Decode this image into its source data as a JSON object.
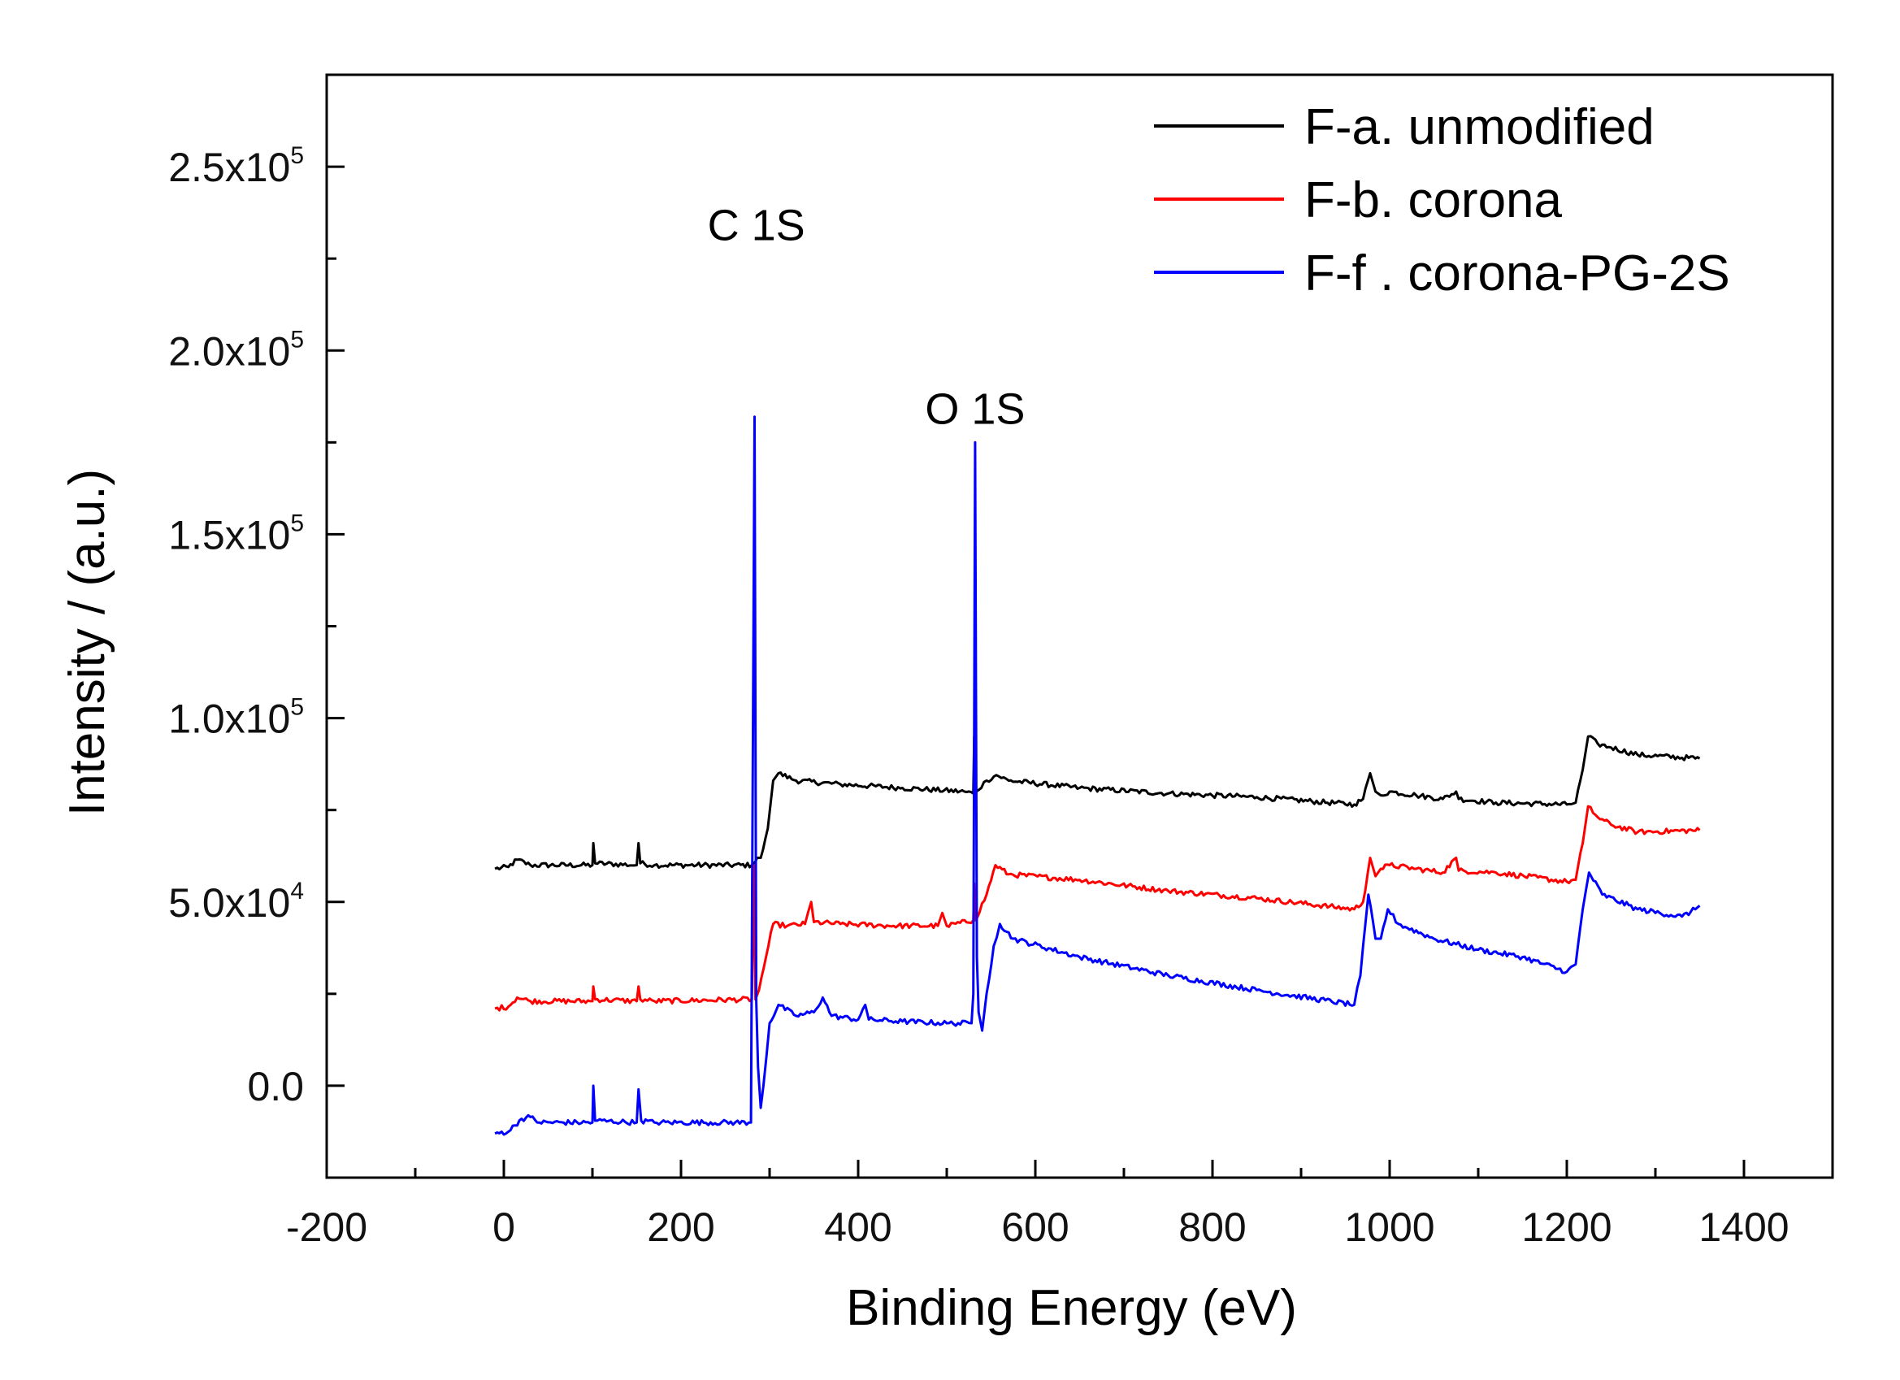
{
  "chart_data": {
    "type": "line",
    "title": "",
    "xlabel": "Binding Energy (eV)",
    "ylabel": "Intensity / (a.u.)",
    "xlim": [
      -200,
      1500
    ],
    "ylim": [
      -25000,
      275000
    ],
    "x_ticks": [
      -200,
      0,
      200,
      400,
      600,
      800,
      1000,
      1200,
      1400
    ],
    "x_tick_labels": [
      "-200",
      "0",
      "200",
      "400",
      "600",
      "800",
      "1000",
      "1200",
      "1400"
    ],
    "y_ticks": [
      0,
      50000,
      100000,
      150000,
      200000,
      250000
    ],
    "y_tick_mantissa": [
      "0.0",
      "5.0x10",
      "1.0x10",
      "1.5x10",
      "2.0x10",
      "2.5x10"
    ],
    "y_tick_exponent": [
      "",
      "4",
      "5",
      "5",
      "5",
      "5"
    ],
    "grid": false,
    "legend_position": "top-right",
    "annotations": [
      {
        "text": "C 1S",
        "x": 285,
        "y": 230000
      },
      {
        "text": "O 1S",
        "x": 532,
        "y": 180000
      }
    ],
    "series": [
      {
        "name": "F-a. unmodified",
        "color": "#000000",
        "points": [
          [
            -10,
            59000
          ],
          [
            5,
            59500
          ],
          [
            15,
            61500
          ],
          [
            30,
            60000
          ],
          [
            100,
            60000
          ],
          [
            101,
            66000
          ],
          [
            103,
            60500
          ],
          [
            150,
            60000
          ],
          [
            152,
            66000
          ],
          [
            154,
            60500
          ],
          [
            170,
            60000
          ],
          [
            280,
            60000
          ],
          [
            284,
            61000
          ],
          [
            286,
            62000
          ],
          [
            290,
            62000
          ],
          [
            298,
            70000
          ],
          [
            304,
            83000
          ],
          [
            310,
            85000
          ],
          [
            330,
            83000
          ],
          [
            380,
            82000
          ],
          [
            450,
            81000
          ],
          [
            520,
            80000
          ],
          [
            530,
            79500
          ],
          [
            531,
            95000
          ],
          [
            533,
            80000
          ],
          [
            545,
            83000
          ],
          [
            556,
            84500
          ],
          [
            570,
            83000
          ],
          [
            650,
            81000
          ],
          [
            750,
            79500
          ],
          [
            850,
            78500
          ],
          [
            960,
            76500
          ],
          [
            970,
            78000
          ],
          [
            978,
            85000
          ],
          [
            984,
            80000
          ],
          [
            990,
            79000
          ],
          [
            1000,
            80000
          ],
          [
            1030,
            79000
          ],
          [
            1060,
            78000
          ],
          [
            1075,
            80000
          ],
          [
            1078,
            78000
          ],
          [
            1120,
            77000
          ],
          [
            1200,
            76500
          ],
          [
            1210,
            77000
          ],
          [
            1218,
            86000
          ],
          [
            1224,
            95000
          ],
          [
            1235,
            93000
          ],
          [
            1250,
            92000
          ],
          [
            1280,
            90000
          ],
          [
            1350,
            89000
          ]
        ]
      },
      {
        "name": "F-b. corona",
        "color": "#ff0000",
        "points": [
          [
            -10,
            21000
          ],
          [
            5,
            21500
          ],
          [
            15,
            24000
          ],
          [
            30,
            23000
          ],
          [
            100,
            23000
          ],
          [
            101,
            27000
          ],
          [
            103,
            23500
          ],
          [
            150,
            23000
          ],
          [
            152,
            27000
          ],
          [
            154,
            23500
          ],
          [
            170,
            23000
          ],
          [
            280,
            23500
          ],
          [
            283,
            60000
          ],
          [
            284,
            23500
          ],
          [
            288,
            26000
          ],
          [
            296,
            35000
          ],
          [
            304,
            44000
          ],
          [
            320,
            43500
          ],
          [
            340,
            44000
          ],
          [
            347,
            50000
          ],
          [
            350,
            44500
          ],
          [
            380,
            44000
          ],
          [
            440,
            43500
          ],
          [
            490,
            43500
          ],
          [
            495,
            47000
          ],
          [
            500,
            43500
          ],
          [
            530,
            45000
          ],
          [
            531,
            55000
          ],
          [
            532,
            45000
          ],
          [
            545,
            52000
          ],
          [
            555,
            60000
          ],
          [
            570,
            57500
          ],
          [
            650,
            56000
          ],
          [
            750,
            53000
          ],
          [
            850,
            51000
          ],
          [
            960,
            48000
          ],
          [
            970,
            50000
          ],
          [
            978,
            62000
          ],
          [
            984,
            57000
          ],
          [
            990,
            59000
          ],
          [
            1000,
            60000
          ],
          [
            1030,
            59000
          ],
          [
            1060,
            58000
          ],
          [
            1075,
            62000
          ],
          [
            1078,
            58500
          ],
          [
            1120,
            58000
          ],
          [
            1200,
            55500
          ],
          [
            1210,
            56000
          ],
          [
            1218,
            66000
          ],
          [
            1224,
            76000
          ],
          [
            1235,
            73000
          ],
          [
            1250,
            71000
          ],
          [
            1280,
            69000
          ],
          [
            1350,
            69500
          ]
        ]
      },
      {
        "name": "F-f . corona-PG-2S",
        "color": "#0000ff",
        "points": [
          [
            -10,
            -13000
          ],
          [
            5,
            -12500
          ],
          [
            20,
            -9000
          ],
          [
            30,
            -8500
          ],
          [
            40,
            -10000
          ],
          [
            100,
            -10000
          ],
          [
            101,
            0
          ],
          [
            103,
            -9500
          ],
          [
            150,
            -10000
          ],
          [
            152,
            -1000
          ],
          [
            155,
            -9500
          ],
          [
            170,
            -10000
          ],
          [
            279,
            -10000
          ],
          [
            283,
            182000
          ],
          [
            285,
            23000
          ],
          [
            287,
            5000
          ],
          [
            290,
            -6000
          ],
          [
            293,
            0
          ],
          [
            300,
            17000
          ],
          [
            310,
            22000
          ],
          [
            330,
            19000
          ],
          [
            350,
            20000
          ],
          [
            360,
            24000
          ],
          [
            370,
            19000
          ],
          [
            400,
            18000
          ],
          [
            408,
            22000
          ],
          [
            412,
            18000
          ],
          [
            450,
            17500
          ],
          [
            500,
            17000
          ],
          [
            528,
            17000
          ],
          [
            530,
            25000
          ],
          [
            532,
            175000
          ],
          [
            534,
            35000
          ],
          [
            536,
            20000
          ],
          [
            540,
            15000
          ],
          [
            545,
            25000
          ],
          [
            553,
            38000
          ],
          [
            560,
            44000
          ],
          [
            575,
            40000
          ],
          [
            650,
            35000
          ],
          [
            750,
            30000
          ],
          [
            850,
            26000
          ],
          [
            960,
            22000
          ],
          [
            967,
            30000
          ],
          [
            976,
            52000
          ],
          [
            984,
            40000
          ],
          [
            990,
            40000
          ],
          [
            998,
            48000
          ],
          [
            1010,
            44000
          ],
          [
            1050,
            40000
          ],
          [
            1100,
            37000
          ],
          [
            1150,
            35000
          ],
          [
            1200,
            31000
          ],
          [
            1210,
            33000
          ],
          [
            1218,
            48000
          ],
          [
            1225,
            58000
          ],
          [
            1240,
            52000
          ],
          [
            1280,
            48000
          ],
          [
            1330,
            46000
          ],
          [
            1345,
            48000
          ],
          [
            1350,
            49000
          ]
        ]
      }
    ]
  }
}
